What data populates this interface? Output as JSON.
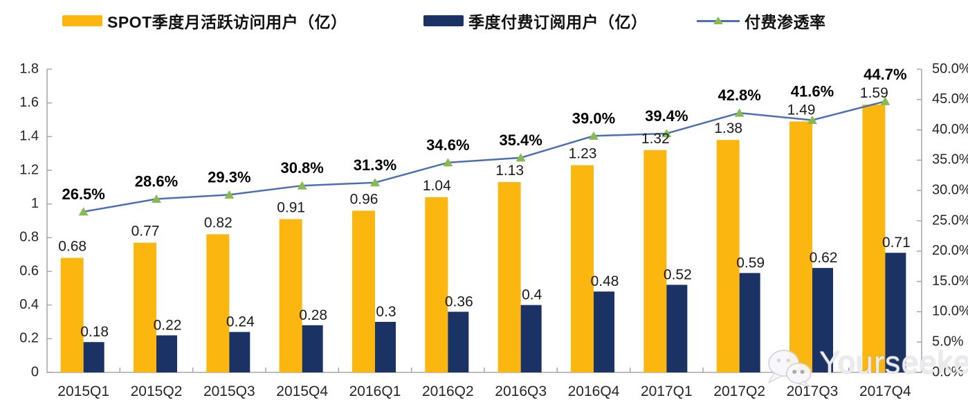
{
  "legend": {
    "items": [
      {
        "label": "SPOT季度月活跃访问用户（亿）",
        "swatch": "bar",
        "color": "#FBB70F"
      },
      {
        "label": "季度付费订阅用户（亿）",
        "swatch": "bar",
        "color": "#1B3264"
      },
      {
        "label": "付费渗透率",
        "swatch": "line",
        "color": "#4A6FB5",
        "marker_color": "#86BB4F"
      }
    ]
  },
  "watermark": {
    "text": "Yourseeker",
    "icon": "wechat-icon"
  },
  "chart_data": {
    "type": "bar",
    "subtype": "grouped-bars-with-line",
    "title": "",
    "grid": false,
    "legend_position": "top",
    "categories": [
      "2015Q1",
      "2015Q2",
      "2015Q3",
      "2015Q4",
      "2016Q1",
      "2016Q2",
      "2016Q3",
      "2016Q4",
      "2017Q1",
      "2017Q2",
      "2017Q3",
      "2017Q4"
    ],
    "series": [
      {
        "name": "SPOT季度月活跃访问用户（亿）",
        "type": "bar",
        "axis": "left",
        "color": "#FBB70F",
        "values": [
          0.68,
          0.77,
          0.82,
          0.91,
          0.96,
          1.04,
          1.13,
          1.23,
          1.32,
          1.38,
          1.49,
          1.59
        ],
        "labels": [
          "0.68",
          "0.77",
          "0.82",
          "0.91",
          "0.96",
          "1.04",
          "1.13",
          "1.23",
          "1.32",
          "1.38",
          "1.49",
          "1.59"
        ]
      },
      {
        "name": "季度付费订阅用户（亿）",
        "type": "bar",
        "axis": "left",
        "color": "#1B3264",
        "values": [
          0.18,
          0.22,
          0.24,
          0.28,
          0.3,
          0.36,
          0.4,
          0.48,
          0.52,
          0.59,
          0.62,
          0.71
        ],
        "labels": [
          "0.18",
          "0.22",
          "0.24",
          "0.28",
          "0.3",
          "0.36",
          "0.4",
          "0.48",
          "0.52",
          "0.59",
          "0.62",
          "0.71"
        ]
      },
      {
        "name": "付费渗透率",
        "type": "line",
        "axis": "right",
        "color": "#4A6FB5",
        "marker": "triangle",
        "marker_color": "#86BB4F",
        "values": [
          26.5,
          28.6,
          29.3,
          30.8,
          31.3,
          34.6,
          35.4,
          39.0,
          39.4,
          42.8,
          41.6,
          44.7
        ],
        "labels": [
          "26.5%",
          "28.6%",
          "29.3%",
          "30.8%",
          "31.3%",
          "34.6%",
          "35.4%",
          "39.0%",
          "39.4%",
          "42.8%",
          "41.6%",
          "44.7%"
        ]
      }
    ],
    "left_axis": {
      "min": 0,
      "max": 1.8,
      "step": 0.2,
      "tick_labels": [
        "0",
        "0.2",
        "0.4",
        "0.6",
        "0.8",
        "1",
        "1.2",
        "1.4",
        "1.6",
        "1.8"
      ]
    },
    "right_axis": {
      "min": 0,
      "max": 50,
      "step": 5,
      "unit": "%",
      "tick_labels": [
        "0.0%",
        "5.0%",
        "10.0%",
        "15.0%",
        "20.0%",
        "25.0%",
        "30.0%",
        "35.0%",
        "40.0%",
        "45.0%",
        "50.0%"
      ]
    }
  }
}
